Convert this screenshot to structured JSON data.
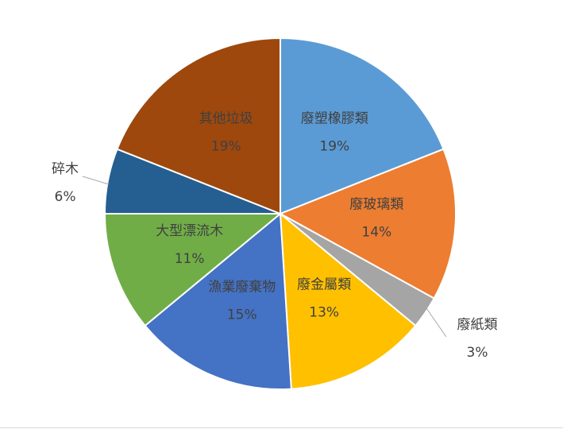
{
  "chart_data": {
    "type": "pie",
    "title": "",
    "slices": [
      {
        "label": "廢塑橡膠類",
        "value": 19,
        "value_label": "19%",
        "color": "#5b9bd5"
      },
      {
        "label": "廢玻璃類",
        "value": 14,
        "value_label": "14%",
        "color": "#ed7d31"
      },
      {
        "label": "廢紙類",
        "value": 3,
        "value_label": "3%",
        "color": "#a5a5a5"
      },
      {
        "label": "廢金屬類",
        "value": 13,
        "value_label": "13%",
        "color": "#ffc000"
      },
      {
        "label": "漁業廢棄物",
        "value": 15,
        "value_label": "15%",
        "color": "#4472c4"
      },
      {
        "label": "大型漂流木",
        "value": 11,
        "value_label": "11%",
        "color": "#70ad47"
      },
      {
        "label": "碎木",
        "value": 6,
        "value_label": "6%",
        "color": "#255e91"
      },
      {
        "label": "其他垃圾",
        "value": 19,
        "value_label": "19%",
        "color": "#9e480e"
      }
    ],
    "legend": "none",
    "data_labels": "category-and-percent"
  }
}
